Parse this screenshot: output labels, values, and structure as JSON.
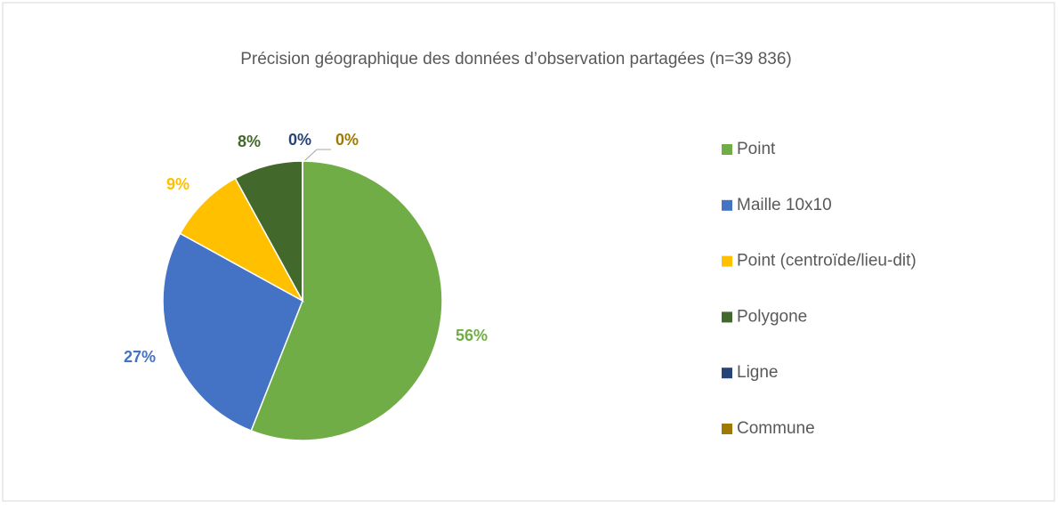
{
  "chart_data": {
    "type": "pie",
    "title": "Précision géographique des données d’observation partagées (n=39 836)",
    "categories": [
      "Point",
      "Maille 10x10",
      "Point (centroïde/lieu-dit)",
      "Polygone",
      "Ligne",
      "Commune"
    ],
    "values": [
      56,
      27,
      9,
      8,
      0,
      0
    ],
    "value_labels": [
      "56%",
      "27%",
      "9%",
      "8%",
      "0%",
      "0%"
    ],
    "colors": [
      "#70ad47",
      "#4472c4",
      "#ffc000",
      "#43682b",
      "#264478",
      "#9e7a00"
    ],
    "legend": "right"
  }
}
